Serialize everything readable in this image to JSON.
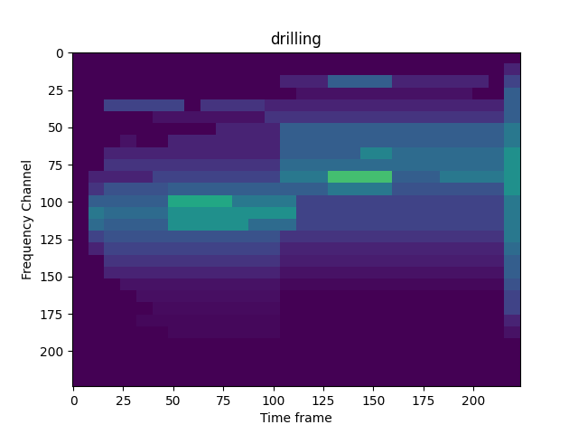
{
  "chart_data": {
    "type": "heatmap",
    "title": "drilling",
    "x_label": "Time frame",
    "y_label": "Frequency Channel",
    "xlim": [
      -0.5,
      223.5
    ],
    "ylim": [
      223.5,
      -0.5
    ],
    "xticks": [
      0,
      25,
      50,
      75,
      100,
      125,
      150,
      175,
      200
    ],
    "yticks": [
      0,
      25,
      50,
      75,
      100,
      125,
      150,
      175,
      200
    ],
    "color_range": [
      0,
      1
    ],
    "cells": [
      [
        0,
        0,
        0,
        0,
        0,
        0,
        0,
        0,
        0,
        0,
        0,
        0,
        0,
        0,
        0,
        0,
        0,
        0,
        0,
        0,
        0,
        0,
        0,
        0,
        0,
        0,
        0,
        0
      ],
      [
        0,
        0,
        0,
        0,
        0,
        0,
        0,
        0,
        0,
        0,
        0,
        0,
        0,
        0,
        0,
        0,
        0,
        0,
        0,
        0,
        0,
        0,
        0,
        0,
        0,
        0,
        0,
        0.1
      ],
      [
        0,
        0,
        0,
        0,
        0,
        0,
        0,
        0,
        0,
        0,
        0,
        0,
        0,
        0.1,
        0.1,
        0.1,
        0.3,
        0.3,
        0.3,
        0.3,
        0.1,
        0.1,
        0.1,
        0.1,
        0.1,
        0.1,
        0,
        0.2
      ],
      [
        0,
        0,
        0,
        0,
        0,
        0,
        0,
        0,
        0,
        0,
        0,
        0,
        0,
        0,
        0.05,
        0.05,
        0.05,
        0.05,
        0.05,
        0.05,
        0.05,
        0.05,
        0.05,
        0.05,
        0.05,
        0,
        0,
        0.3
      ],
      [
        0,
        0,
        0.2,
        0.2,
        0.2,
        0.2,
        0.2,
        0,
        0.15,
        0.15,
        0.15,
        0.15,
        0.1,
        0.1,
        0.1,
        0.1,
        0.1,
        0.1,
        0.1,
        0.1,
        0.1,
        0.1,
        0.1,
        0.1,
        0.1,
        0.1,
        0.1,
        0.3
      ],
      [
        0,
        0,
        0,
        0,
        0,
        0.05,
        0.05,
        0.05,
        0.05,
        0.05,
        0.05,
        0.05,
        0.15,
        0.15,
        0.15,
        0.15,
        0.15,
        0.15,
        0.15,
        0.15,
        0.15,
        0.15,
        0.15,
        0.15,
        0.15,
        0.15,
        0.15,
        0.3
      ],
      [
        0,
        0,
        0,
        0,
        0,
        0,
        0,
        0,
        0,
        0.1,
        0.1,
        0.1,
        0.1,
        0.3,
        0.3,
        0.3,
        0.3,
        0.3,
        0.3,
        0.3,
        0.3,
        0.3,
        0.3,
        0.3,
        0.3,
        0.3,
        0.3,
        0.4
      ],
      [
        0,
        0,
        0,
        0.05,
        0,
        0,
        0.1,
        0.1,
        0.1,
        0.1,
        0.1,
        0.1,
        0.1,
        0.3,
        0.3,
        0.3,
        0.3,
        0.3,
        0.3,
        0.3,
        0.3,
        0.3,
        0.3,
        0.3,
        0.3,
        0.3,
        0.3,
        0.4
      ],
      [
        0,
        0,
        0.1,
        0.1,
        0.1,
        0.1,
        0.1,
        0.1,
        0.1,
        0.1,
        0.1,
        0.1,
        0.1,
        0.3,
        0.3,
        0.3,
        0.3,
        0.3,
        0.45,
        0.45,
        0.35,
        0.35,
        0.35,
        0.35,
        0.35,
        0.35,
        0.35,
        0.5
      ],
      [
        0,
        0,
        0.15,
        0.15,
        0.15,
        0.15,
        0.15,
        0.15,
        0.15,
        0.15,
        0.15,
        0.15,
        0.15,
        0.35,
        0.35,
        0.35,
        0.35,
        0.35,
        0.35,
        0.35,
        0.35,
        0.35,
        0.35,
        0.35,
        0.35,
        0.35,
        0.35,
        0.5
      ],
      [
        0,
        0.1,
        0.1,
        0.1,
        0.1,
        0.2,
        0.2,
        0.2,
        0.2,
        0.2,
        0.2,
        0.2,
        0.2,
        0.4,
        0.4,
        0.4,
        0.7,
        0.7,
        0.7,
        0.7,
        0.3,
        0.3,
        0.3,
        0.4,
        0.4,
        0.4,
        0.4,
        0.5
      ],
      [
        0,
        0.15,
        0.25,
        0.25,
        0.25,
        0.25,
        0.3,
        0.3,
        0.3,
        0.3,
        0.3,
        0.3,
        0.3,
        0.3,
        0.3,
        0.3,
        0.4,
        0.4,
        0.4,
        0.4,
        0.25,
        0.25,
        0.25,
        0.25,
        0.25,
        0.25,
        0.25,
        0.5
      ],
      [
        0,
        0.3,
        0.3,
        0.3,
        0.3,
        0.3,
        0.6,
        0.6,
        0.6,
        0.6,
        0.4,
        0.4,
        0.4,
        0.4,
        0.2,
        0.2,
        0.2,
        0.2,
        0.2,
        0.2,
        0.2,
        0.2,
        0.2,
        0.2,
        0.2,
        0.2,
        0.2,
        0.4
      ],
      [
        0,
        0.4,
        0.35,
        0.35,
        0.35,
        0.35,
        0.5,
        0.5,
        0.5,
        0.5,
        0.5,
        0.5,
        0.5,
        0.5,
        0.2,
        0.2,
        0.2,
        0.2,
        0.2,
        0.2,
        0.2,
        0.2,
        0.2,
        0.2,
        0.2,
        0.2,
        0.2,
        0.4
      ],
      [
        0,
        0.35,
        0.3,
        0.3,
        0.3,
        0.3,
        0.5,
        0.5,
        0.5,
        0.5,
        0.5,
        0.35,
        0.35,
        0.35,
        0.2,
        0.2,
        0.2,
        0.2,
        0.2,
        0.2,
        0.2,
        0.2,
        0.2,
        0.2,
        0.2,
        0.2,
        0.2,
        0.4
      ],
      [
        0,
        0.2,
        0.25,
        0.25,
        0.25,
        0.25,
        0.25,
        0.25,
        0.25,
        0.25,
        0.25,
        0.25,
        0.25,
        0.15,
        0.15,
        0.15,
        0.15,
        0.15,
        0.15,
        0.15,
        0.15,
        0.15,
        0.15,
        0.15,
        0.15,
        0.15,
        0.15,
        0.4
      ],
      [
        0,
        0.1,
        0.2,
        0.2,
        0.2,
        0.2,
        0.2,
        0.2,
        0.2,
        0.2,
        0.2,
        0.2,
        0.2,
        0.1,
        0.1,
        0.1,
        0.1,
        0.1,
        0.1,
        0.1,
        0.1,
        0.1,
        0.1,
        0.1,
        0.1,
        0.1,
        0.1,
        0.35
      ],
      [
        0,
        0,
        0.15,
        0.15,
        0.15,
        0.15,
        0.15,
        0.15,
        0.15,
        0.15,
        0.15,
        0.15,
        0.15,
        0.08,
        0.08,
        0.08,
        0.08,
        0.08,
        0.08,
        0.08,
        0.08,
        0.08,
        0.08,
        0.08,
        0.08,
        0.08,
        0.08,
        0.3
      ],
      [
        0,
        0,
        0.1,
        0.1,
        0.1,
        0.1,
        0.1,
        0.1,
        0.1,
        0.1,
        0.1,
        0.1,
        0.1,
        0.05,
        0.05,
        0.05,
        0.05,
        0.05,
        0.05,
        0.05,
        0.05,
        0.05,
        0.05,
        0.05,
        0.05,
        0.05,
        0.05,
        0.3
      ],
      [
        0,
        0,
        0,
        0.05,
        0.05,
        0.05,
        0.05,
        0.05,
        0.05,
        0.05,
        0.05,
        0.05,
        0.05,
        0.02,
        0.02,
        0.02,
        0.02,
        0.02,
        0.02,
        0.02,
        0.02,
        0.02,
        0.02,
        0.02,
        0.02,
        0.02,
        0.02,
        0.25
      ],
      [
        0,
        0,
        0,
        0,
        0.04,
        0.04,
        0.04,
        0.04,
        0.04,
        0.04,
        0.04,
        0.04,
        0.04,
        0,
        0,
        0,
        0,
        0,
        0,
        0,
        0,
        0,
        0,
        0,
        0,
        0,
        0,
        0.2
      ],
      [
        0,
        0,
        0,
        0,
        0,
        0.03,
        0.03,
        0.03,
        0.03,
        0.03,
        0.03,
        0.03,
        0.03,
        0,
        0,
        0,
        0,
        0,
        0,
        0,
        0,
        0,
        0,
        0,
        0,
        0,
        0,
        0.2
      ],
      [
        0,
        0,
        0,
        0,
        0.02,
        0.02,
        0.02,
        0.02,
        0.02,
        0.02,
        0.02,
        0.02,
        0.02,
        0,
        0,
        0,
        0,
        0,
        0,
        0,
        0,
        0,
        0,
        0,
        0,
        0,
        0,
        0.1
      ],
      [
        0,
        0,
        0,
        0,
        0,
        0,
        0.02,
        0.02,
        0.02,
        0.02,
        0.02,
        0.02,
        0.02,
        0,
        0,
        0,
        0,
        0,
        0,
        0,
        0,
        0,
        0,
        0,
        0,
        0,
        0,
        0.05
      ],
      [
        0,
        0,
        0,
        0,
        0,
        0,
        0,
        0,
        0,
        0,
        0,
        0,
        0,
        0,
        0,
        0,
        0,
        0,
        0,
        0,
        0,
        0,
        0,
        0,
        0,
        0,
        0,
        0
      ],
      [
        0,
        0,
        0,
        0,
        0,
        0,
        0,
        0,
        0,
        0,
        0,
        0,
        0,
        0,
        0,
        0,
        0,
        0,
        0,
        0,
        0,
        0,
        0,
        0,
        0,
        0,
        0,
        0
      ],
      [
        0,
        0,
        0,
        0,
        0,
        0,
        0,
        0,
        0,
        0,
        0,
        0,
        0,
        0,
        0,
        0,
        0,
        0,
        0,
        0,
        0,
        0,
        0,
        0,
        0,
        0,
        0,
        0
      ],
      [
        0,
        0,
        0,
        0,
        0,
        0,
        0,
        0,
        0,
        0,
        0,
        0,
        0,
        0,
        0,
        0,
        0,
        0,
        0,
        0,
        0,
        0,
        0,
        0,
        0,
        0,
        0,
        0
      ]
    ]
  }
}
